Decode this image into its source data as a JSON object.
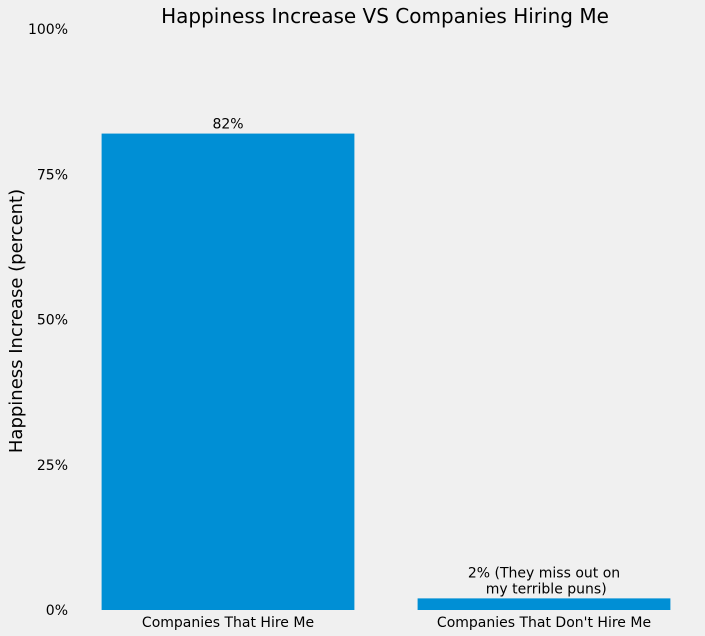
{
  "chart_data": {
    "type": "bar",
    "title": "Happiness Increase VS Companies Hiring Me",
    "xlabel": "",
    "ylabel": "Happiness Increase (percent)",
    "categories": [
      "Companies That Hire Me",
      "Companies That Don't Hire Me"
    ],
    "values": [
      82,
      2
    ],
    "value_labels": [
      [
        "82%"
      ],
      [
        "2% (They miss out on",
        " my terrible puns)"
      ]
    ],
    "ylim": [
      0,
      100
    ],
    "yticks": [
      0,
      25,
      50,
      75,
      100
    ],
    "ytick_labels": [
      "0%",
      "25%",
      "50%",
      "75%",
      "100%"
    ],
    "grid": false,
    "legend": "none",
    "bar_color": "#008fd5",
    "background_color": "#f0f0f0"
  }
}
